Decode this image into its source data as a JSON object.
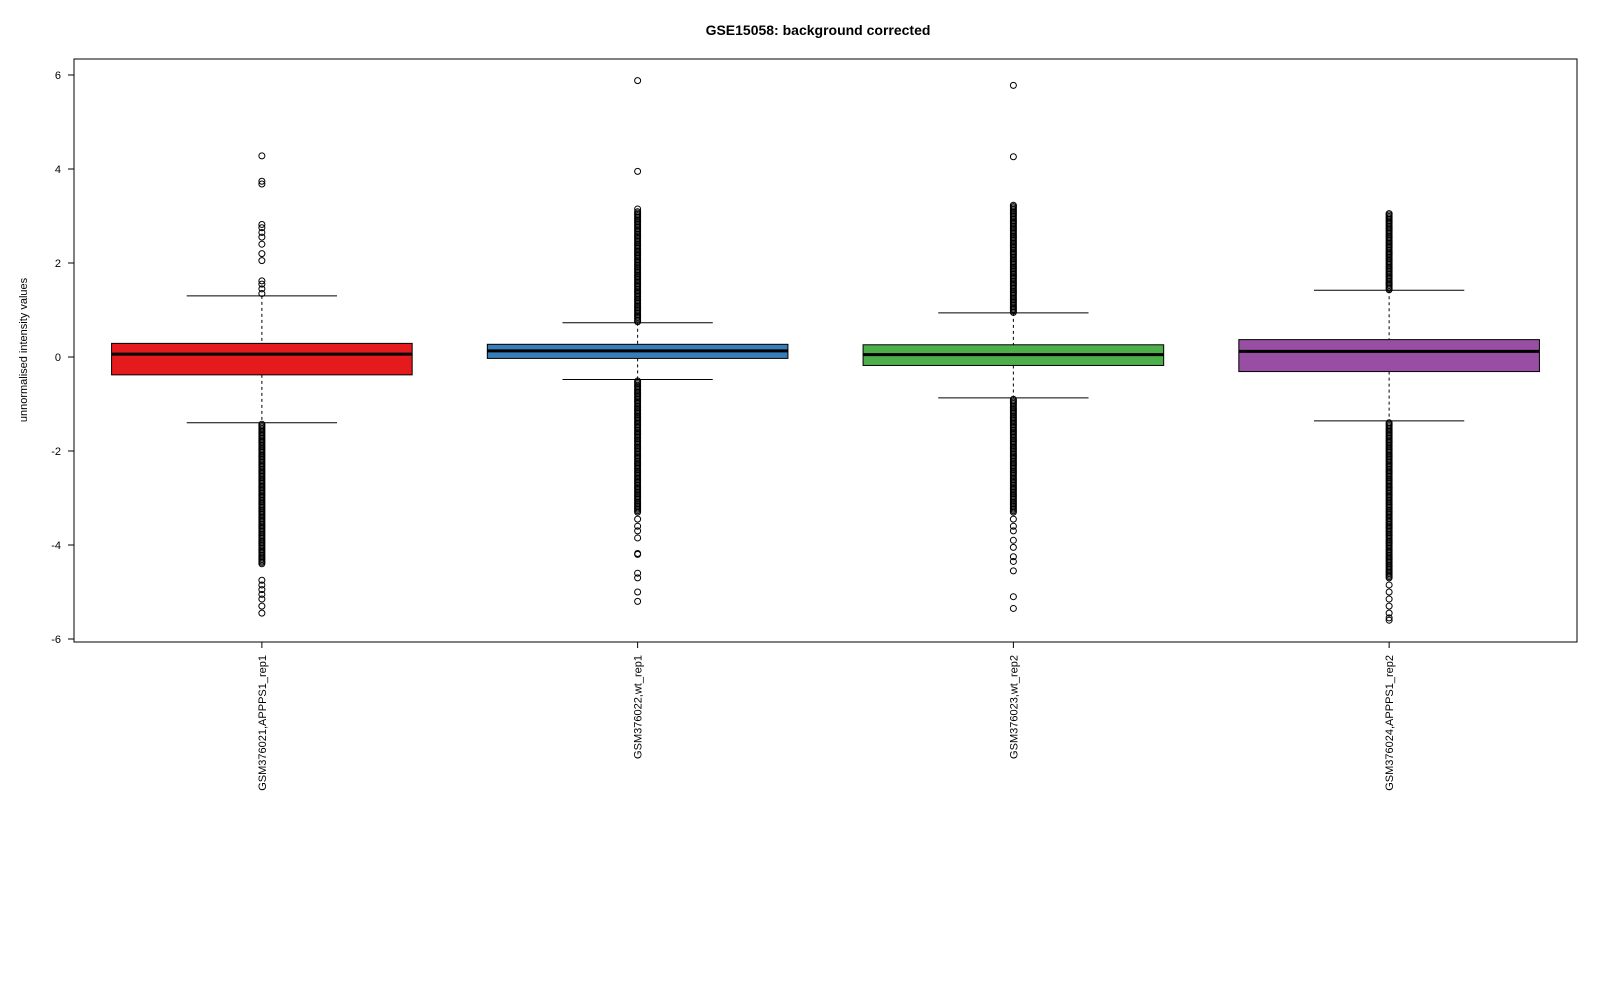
{
  "chart_data": {
    "type": "box",
    "title": "GSE15058: background corrected",
    "xlabel": "",
    "ylabel": "unnormalised intensity values",
    "ylim": [
      -6,
      6
    ],
    "yticks": [
      -6,
      -4,
      -2,
      0,
      2,
      4,
      6
    ],
    "ytick_labels": [
      "-6",
      "-4",
      "-2",
      "0",
      "2",
      "4",
      "6"
    ],
    "grid": false,
    "legend": "none",
    "categories": [
      "GSM376021,APPPS1_rep1",
      "GSM376022,wt_rep1",
      "GSM376023,wt_rep2",
      "GSM376024,APPPS1_rep2"
    ],
    "boxes": [
      {
        "name": "GSM376021,APPPS1_rep1",
        "color": "#e41a1c",
        "whisker_low": -1.4,
        "q1": -0.38,
        "median": 0.06,
        "q3": 0.29,
        "whisker_high": 1.3,
        "outliers_high": [
          1.35,
          1.45,
          1.55,
          1.62,
          2.05,
          2.2,
          2.4,
          2.55,
          2.65,
          2.75,
          2.82,
          3.68,
          3.74,
          4.28
        ],
        "outliers_low_range": [
          -1.42,
          -4.4
        ],
        "outliers_low_extra": [
          -4.75,
          -4.85,
          -4.95,
          -5.05,
          -5.15,
          -5.3,
          -5.45
        ]
      },
      {
        "name": "GSM376022,wt_rep1",
        "color": "#377eb8",
        "whisker_low": -0.48,
        "q1": -0.03,
        "median": 0.13,
        "q3": 0.27,
        "whisker_high": 0.73,
        "outliers_high_range": [
          0.75,
          3.1
        ],
        "outliers_high": [
          3.15,
          3.95,
          5.88
        ],
        "outliers_low_range": [
          -0.5,
          -3.3
        ],
        "outliers_low_extra": [
          -3.45,
          -3.6,
          -3.7,
          -3.85,
          -4.18,
          -4.2,
          -4.6,
          -4.7,
          -5.0,
          -5.2
        ]
      },
      {
        "name": "GSM376023,wt_rep2",
        "color": "#4daf4a",
        "whisker_low": -0.87,
        "q1": -0.18,
        "median": 0.05,
        "q3": 0.26,
        "whisker_high": 0.94,
        "outliers_high_range": [
          0.95,
          3.25
        ],
        "outliers_high": [
          4.26,
          5.78
        ],
        "outliers_low_range": [
          -0.88,
          -3.3
        ],
        "outliers_low_extra": [
          -3.45,
          -3.6,
          -3.7,
          -3.9,
          -4.05,
          -4.25,
          -4.35,
          -4.55,
          -5.1,
          -5.35
        ]
      },
      {
        "name": "GSM376024,APPPS1_rep2",
        "color": "#984ea3",
        "whisker_low": -1.36,
        "q1": -0.31,
        "median": 0.12,
        "q3": 0.37,
        "whisker_high": 1.42,
        "outliers_high_range": [
          1.43,
          3.05
        ],
        "outliers_high": [],
        "outliers_low_range": [
          -1.38,
          -4.7
        ],
        "outliers_low_extra": [
          -4.85,
          -5.0,
          -5.15,
          -5.3,
          -5.45,
          -5.55,
          -5.6
        ]
      }
    ]
  }
}
